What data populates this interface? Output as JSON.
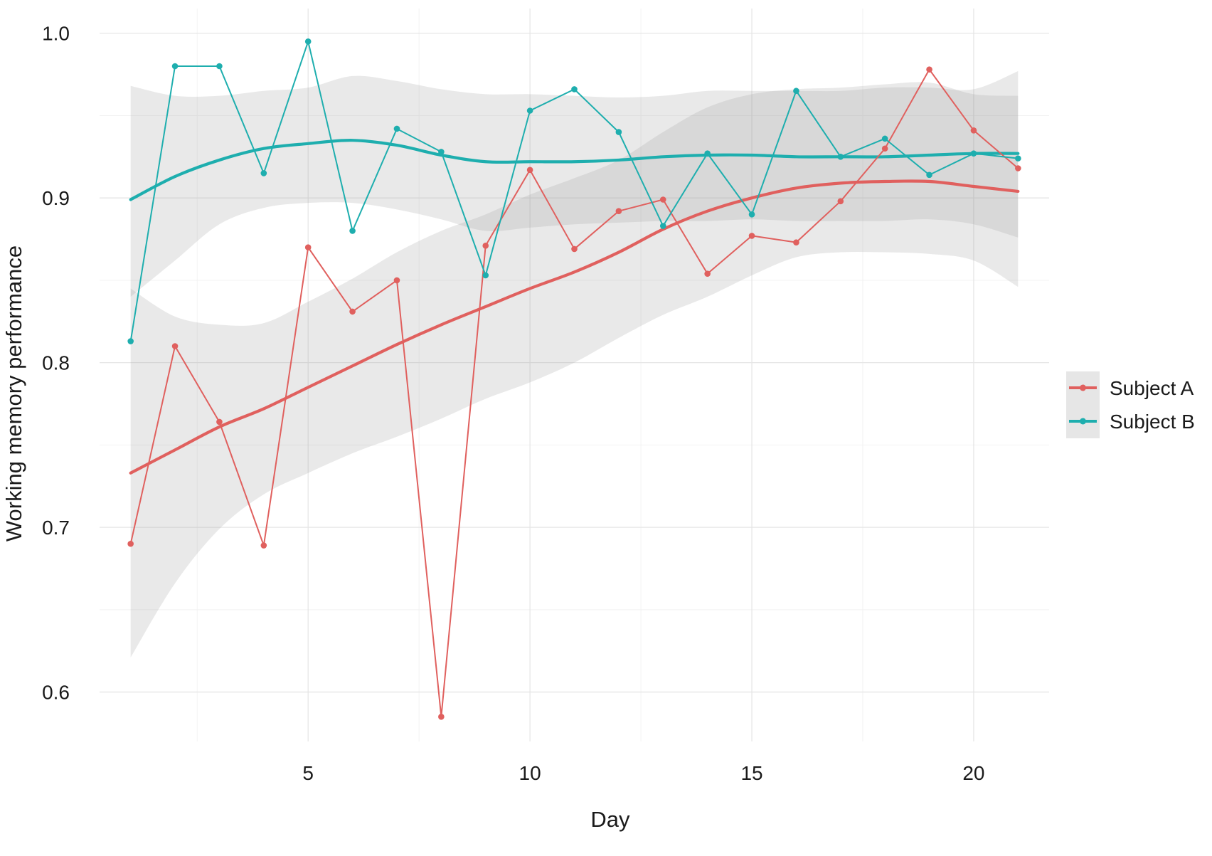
{
  "chart_data": {
    "type": "line",
    "title": "",
    "xlabel": "Day",
    "ylabel": "Working memory performance",
    "xlim": [
      0.3,
      21.7
    ],
    "ylim": [
      0.57,
      1.015
    ],
    "x_ticks": [
      5,
      10,
      15,
      20
    ],
    "y_ticks": [
      0.6,
      0.7,
      0.8,
      0.9,
      1.0
    ],
    "x_tick_labels": [
      "5",
      "10",
      "15",
      "20"
    ],
    "y_tick_labels": [
      "0.6",
      "0.7",
      "0.8",
      "0.9",
      "1.0"
    ],
    "grid": true,
    "legend_position": "right",
    "x": [
      1,
      2,
      3,
      4,
      5,
      6,
      7,
      8,
      9,
      10,
      11,
      12,
      13,
      14,
      15,
      16,
      17,
      18,
      19,
      20,
      21
    ],
    "series": [
      {
        "name": "Subject A",
        "color": "#E0605E",
        "values": [
          0.69,
          0.81,
          0.764,
          0.689,
          0.87,
          0.831,
          0.85,
          0.585,
          0.871,
          0.917,
          0.869,
          0.892,
          0.899,
          0.854,
          0.877,
          0.873,
          0.898,
          0.93,
          0.978,
          0.941,
          0.918
        ],
        "smooth": [
          0.733,
          0.747,
          0.761,
          0.772,
          0.785,
          0.798,
          0.811,
          0.823,
          0.834,
          0.845,
          0.855,
          0.867,
          0.881,
          0.892,
          0.9,
          0.906,
          0.909,
          0.91,
          0.91,
          0.907,
          0.904
        ],
        "smooth_lower": [
          0.621,
          0.666,
          0.699,
          0.72,
          0.733,
          0.745,
          0.755,
          0.766,
          0.778,
          0.788,
          0.8,
          0.815,
          0.829,
          0.84,
          0.853,
          0.864,
          0.867,
          0.867,
          0.866,
          0.862,
          0.846
        ],
        "smooth_upper": [
          0.845,
          0.828,
          0.823,
          0.824,
          0.837,
          0.851,
          0.867,
          0.88,
          0.89,
          0.902,
          0.912,
          0.923,
          0.94,
          0.955,
          0.963,
          0.966,
          0.967,
          0.969,
          0.97,
          0.963,
          0.962
        ]
      },
      {
        "name": "Subject B",
        "color": "#1EAEAE",
        "values": [
          0.813,
          0.98,
          0.98,
          0.915,
          0.995,
          0.88,
          0.942,
          0.928,
          0.853,
          0.953,
          0.966,
          0.94,
          0.883,
          0.927,
          0.89,
          0.965,
          0.925,
          0.936,
          0.914,
          0.927,
          0.924
        ],
        "smooth": [
          0.899,
          0.913,
          0.923,
          0.93,
          0.933,
          0.935,
          0.932,
          0.926,
          0.922,
          0.922,
          0.922,
          0.923,
          0.925,
          0.926,
          0.926,
          0.925,
          0.925,
          0.925,
          0.926,
          0.927,
          0.927
        ],
        "smooth_lower": [
          0.84,
          0.862,
          0.884,
          0.894,
          0.897,
          0.897,
          0.893,
          0.887,
          0.88,
          0.882,
          0.884,
          0.885,
          0.886,
          0.886,
          0.887,
          0.886,
          0.886,
          0.886,
          0.887,
          0.884,
          0.876
        ],
        "smooth_upper": [
          0.968,
          0.962,
          0.962,
          0.965,
          0.967,
          0.974,
          0.971,
          0.966,
          0.963,
          0.963,
          0.962,
          0.961,
          0.962,
          0.965,
          0.965,
          0.965,
          0.965,
          0.967,
          0.967,
          0.966,
          0.977
        ]
      }
    ]
  }
}
